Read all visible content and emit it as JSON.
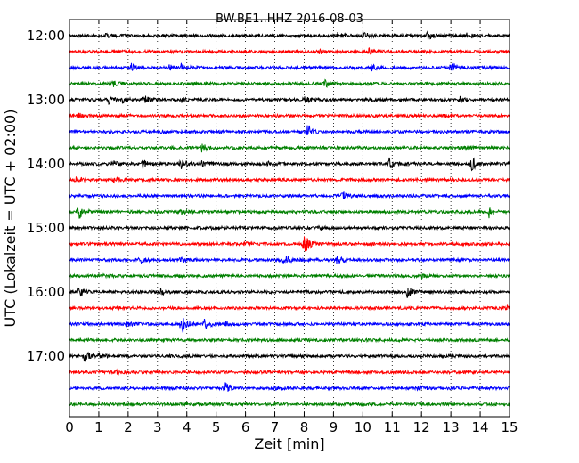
{
  "chart_data": {
    "type": "line",
    "title": "BW.BE1..HHZ 2016-08-03",
    "xlabel": "Zeit  [min]",
    "ylabel": "UTC (Lokalzeit = UTC + 02:00)",
    "xlim": [
      0,
      15
    ],
    "x_ticks": [
      "0",
      "1",
      "2",
      "3",
      "4",
      "5",
      "6",
      "7",
      "8",
      "9",
      "10",
      "11",
      "12",
      "13",
      "14",
      "15"
    ],
    "y_ticks": [
      "12:00",
      "13:00",
      "14:00",
      "15:00",
      "16:00",
      "17:00"
    ],
    "grid": "x dotted",
    "trace_colors": [
      "#000000",
      "#ff0000",
      "#0000ff",
      "#008000"
    ],
    "traces": [
      {
        "start": "12:00",
        "events": [
          [
            1.2,
            2
          ],
          [
            9.1,
            4
          ],
          [
            10,
            4
          ],
          [
            12.2,
            5
          ],
          [
            13.5,
            3
          ]
        ]
      },
      {
        "start": "12:15",
        "events": [
          [
            8.5,
            2
          ],
          [
            10.2,
            3
          ]
        ]
      },
      {
        "start": "12:30",
        "events": [
          [
            2.1,
            4
          ],
          [
            3.4,
            3
          ],
          [
            3.8,
            4
          ],
          [
            13.0,
            8
          ],
          [
            10.3,
            3
          ]
        ]
      },
      {
        "start": "12:45",
        "events": [
          [
            1.5,
            3
          ],
          [
            8.7,
            4
          ]
        ]
      },
      {
        "start": "13:00",
        "events": [
          [
            1.3,
            5
          ],
          [
            1.8,
            3
          ],
          [
            2.5,
            6
          ],
          [
            3.8,
            3
          ],
          [
            8.0,
            3
          ],
          [
            13.3,
            3
          ]
        ]
      },
      {
        "start": "13:15",
        "events": [
          [
            0.3,
            3
          ],
          [
            12.8,
            2
          ]
        ]
      },
      {
        "start": "13:30",
        "events": [
          [
            8.1,
            9
          ]
        ]
      },
      {
        "start": "13:45",
        "events": [
          [
            4.5,
            5
          ],
          [
            13.5,
            3
          ]
        ]
      },
      {
        "start": "14:00",
        "events": [
          [
            1.5,
            3
          ],
          [
            2.5,
            5
          ],
          [
            3.8,
            6
          ],
          [
            4.5,
            5
          ],
          [
            6.7,
            3
          ],
          [
            10.9,
            6
          ],
          [
            13.7,
            8
          ],
          [
            15,
            3
          ]
        ]
      },
      {
        "start": "14:15",
        "events": [
          [
            0.2,
            4
          ],
          [
            1.5,
            3
          ]
        ]
      },
      {
        "start": "14:30",
        "events": [
          [
            9.3,
            6
          ]
        ]
      },
      {
        "start": "14:45",
        "events": [
          [
            0.3,
            11
          ],
          [
            14.3,
            6
          ],
          [
            3.8,
            2
          ]
        ]
      },
      {
        "start": "15:00",
        "events": [
          [
            4.8,
            2
          ],
          [
            8.5,
            2
          ]
        ]
      },
      {
        "start": "15:15",
        "events": [
          [
            8.0,
            14
          ],
          [
            6.0,
            2
          ]
        ]
      },
      {
        "start": "15:30",
        "events": [
          [
            2.4,
            3
          ],
          [
            3.8,
            3
          ],
          [
            7.3,
            12
          ],
          [
            9.1,
            6
          ]
        ]
      },
      {
        "start": "15:45",
        "events": [
          [
            1.0,
            2
          ],
          [
            12.0,
            2
          ]
        ]
      },
      {
        "start": "16:00",
        "events": [
          [
            0.3,
            7
          ],
          [
            3.1,
            3
          ],
          [
            11.5,
            8
          ]
        ]
      },
      {
        "start": "16:15",
        "events": [
          [
            14.9,
            4
          ]
        ]
      },
      {
        "start": "16:30",
        "events": [
          [
            1.9,
            3
          ],
          [
            3.8,
            16
          ],
          [
            4.6,
            6
          ],
          [
            5.3,
            3
          ]
        ]
      },
      {
        "start": "16:45",
        "events": []
      },
      {
        "start": "17:00",
        "events": [
          [
            0.5,
            6
          ],
          [
            1.0,
            3
          ]
        ]
      },
      {
        "start": "17:15",
        "events": [
          [
            1.6,
            2
          ]
        ]
      },
      {
        "start": "17:30",
        "events": [
          [
            5.3,
            6
          ],
          [
            7.0,
            3
          ],
          [
            11.9,
            4
          ]
        ]
      },
      {
        "start": "17:45",
        "events": []
      }
    ]
  }
}
